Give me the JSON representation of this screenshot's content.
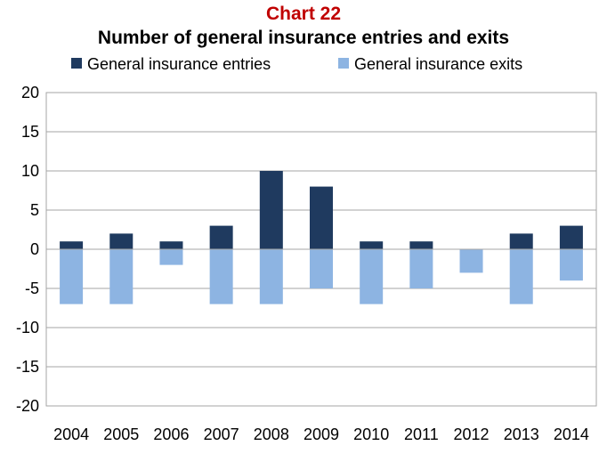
{
  "title": "Chart 22",
  "subtitle": "Number of general insurance entries and exits",
  "colors": {
    "entries": "#1F3A5F",
    "exits": "#8DB4E2",
    "title": "#C00000",
    "grid": "#A6A6A6"
  },
  "chart_data": {
    "type": "bar",
    "stacked": true,
    "categories": [
      "2004",
      "2005",
      "2006",
      "2007",
      "2008",
      "2009",
      "2010",
      "2011",
      "2012",
      "2013",
      "2014"
    ],
    "series": [
      {
        "name": "General insurance entries",
        "values": [
          1,
          2,
          1,
          3,
          10,
          8,
          1,
          1,
          0,
          2,
          3
        ]
      },
      {
        "name": "General insurance exits",
        "values": [
          -7,
          -7,
          -2,
          -7,
          -7,
          -5,
          -7,
          -5,
          -3,
          -7,
          -4
        ]
      }
    ],
    "ylim": [
      -20,
      20
    ],
    "yticks": [
      20,
      15,
      10,
      5,
      0,
      -5,
      -10,
      -15,
      -20
    ],
    "ytick_labels": [
      "20",
      "15",
      "10",
      "5",
      "0",
      "-5",
      "-10",
      "-15",
      "-20"
    ],
    "grid": true,
    "legend_position": "top"
  }
}
